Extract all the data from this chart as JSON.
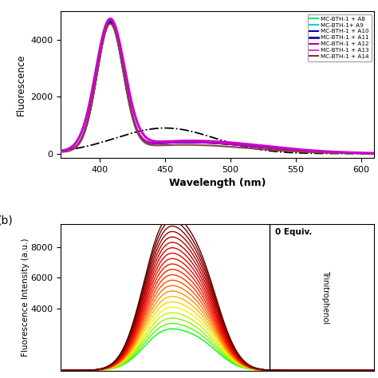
{
  "panel_a": {
    "xlabel": "Wavelength (nm)",
    "ylabel": "Fluorescence",
    "xlim": [
      370,
      610
    ],
    "ylim": [
      -150,
      5000
    ],
    "xticks": [
      400,
      450,
      500,
      550,
      600
    ],
    "yticks": [
      0,
      2000,
      4000
    ],
    "legend_entries": [
      {
        "label": "MC-BTH-1 + A8",
        "color": "#00e88a",
        "lw": 1.5
      },
      {
        "label": "MC-BTH-1+ A9",
        "color": "#00d4d4",
        "lw": 1.5
      },
      {
        "label": "MC-BTH-1 + A10",
        "color": "#0000bb",
        "lw": 1.5
      },
      {
        "label": "MC-BTH-1 + A11",
        "color": "#2200aa",
        "lw": 2.0
      },
      {
        "label": "MC-BTH-1 + A12",
        "color": "#aa00aa",
        "lw": 1.5
      },
      {
        "label": "MC-BTH-1 + A13",
        "color": "#cc44cc",
        "lw": 1.5
      },
      {
        "label": "MC-BTH-1 + A14",
        "color": "#883333",
        "lw": 1.5
      }
    ]
  },
  "panel_b": {
    "ylabel": "Fluorescence Intensity (a.u.)",
    "xlim": [
      370,
      610
    ],
    "ylim": [
      0,
      9500
    ],
    "yticks": [
      4000,
      6000,
      8000
    ],
    "annotation_0equiv": "0 Equiv.",
    "annotation_trinitrophenol": "Trinitrophenol",
    "label_b": "(b)",
    "n_curves": 22,
    "peak_amp_max": 8200,
    "peak_amp_min": 2200
  }
}
